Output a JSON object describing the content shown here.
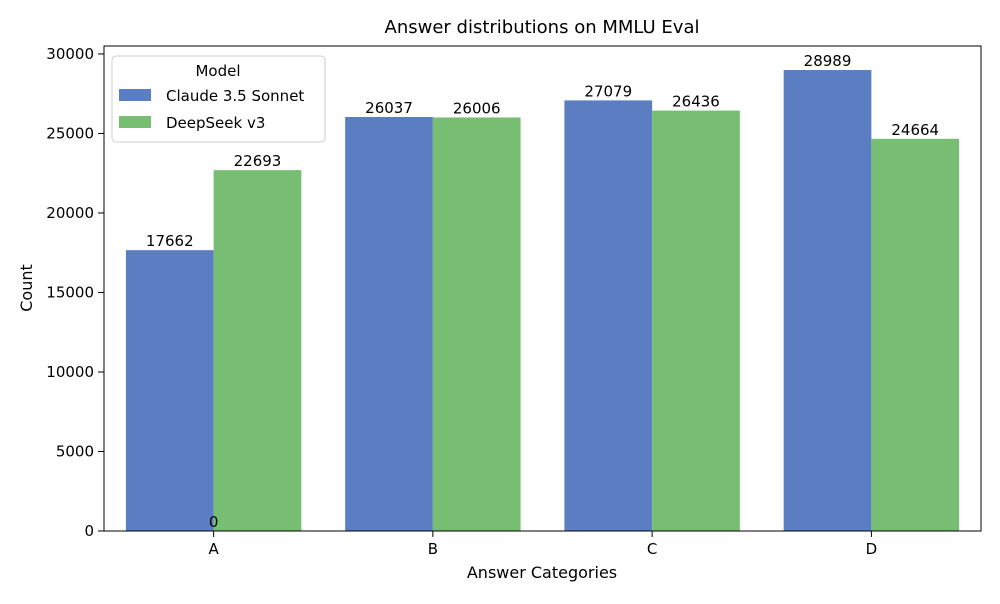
{
  "chart_data": {
    "type": "bar",
    "title": "Answer distributions on MMLU Eval",
    "xlabel": "Answer Categories",
    "ylabel": "Count",
    "categories": [
      "A",
      "B",
      "C",
      "D"
    ],
    "ylim": [
      0,
      30500
    ],
    "yticks": [
      0,
      5000,
      10000,
      15000,
      20000,
      25000,
      30000
    ],
    "grid": false,
    "legend": {
      "title": "Model",
      "placement": "top-left"
    },
    "series": [
      {
        "name": "Claude 3.5 Sonnet",
        "color": "#5a7ec1",
        "values": [
          17662,
          26037,
          27079,
          28989
        ],
        "labels": [
          "17662",
          "26037",
          "27079",
          "28989"
        ]
      },
      {
        "name": "DeepSeek v3",
        "color": "#77be73",
        "values": [
          22693,
          26006,
          26436,
          24664
        ],
        "labels": [
          "22693",
          "26006",
          "26436",
          "24664"
        ]
      }
    ],
    "annotations": [
      {
        "text": "0",
        "category": "A",
        "y": 0
      }
    ]
  }
}
